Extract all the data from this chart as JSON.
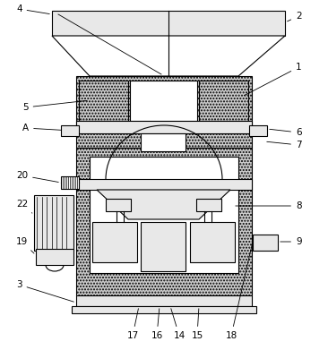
{
  "bg_color": "#ffffff",
  "line_color": "#000000",
  "stipple_color": "#cccccc",
  "light_gray": "#e8e8e8",
  "label_fs": 7.5,
  "lw": 0.8
}
